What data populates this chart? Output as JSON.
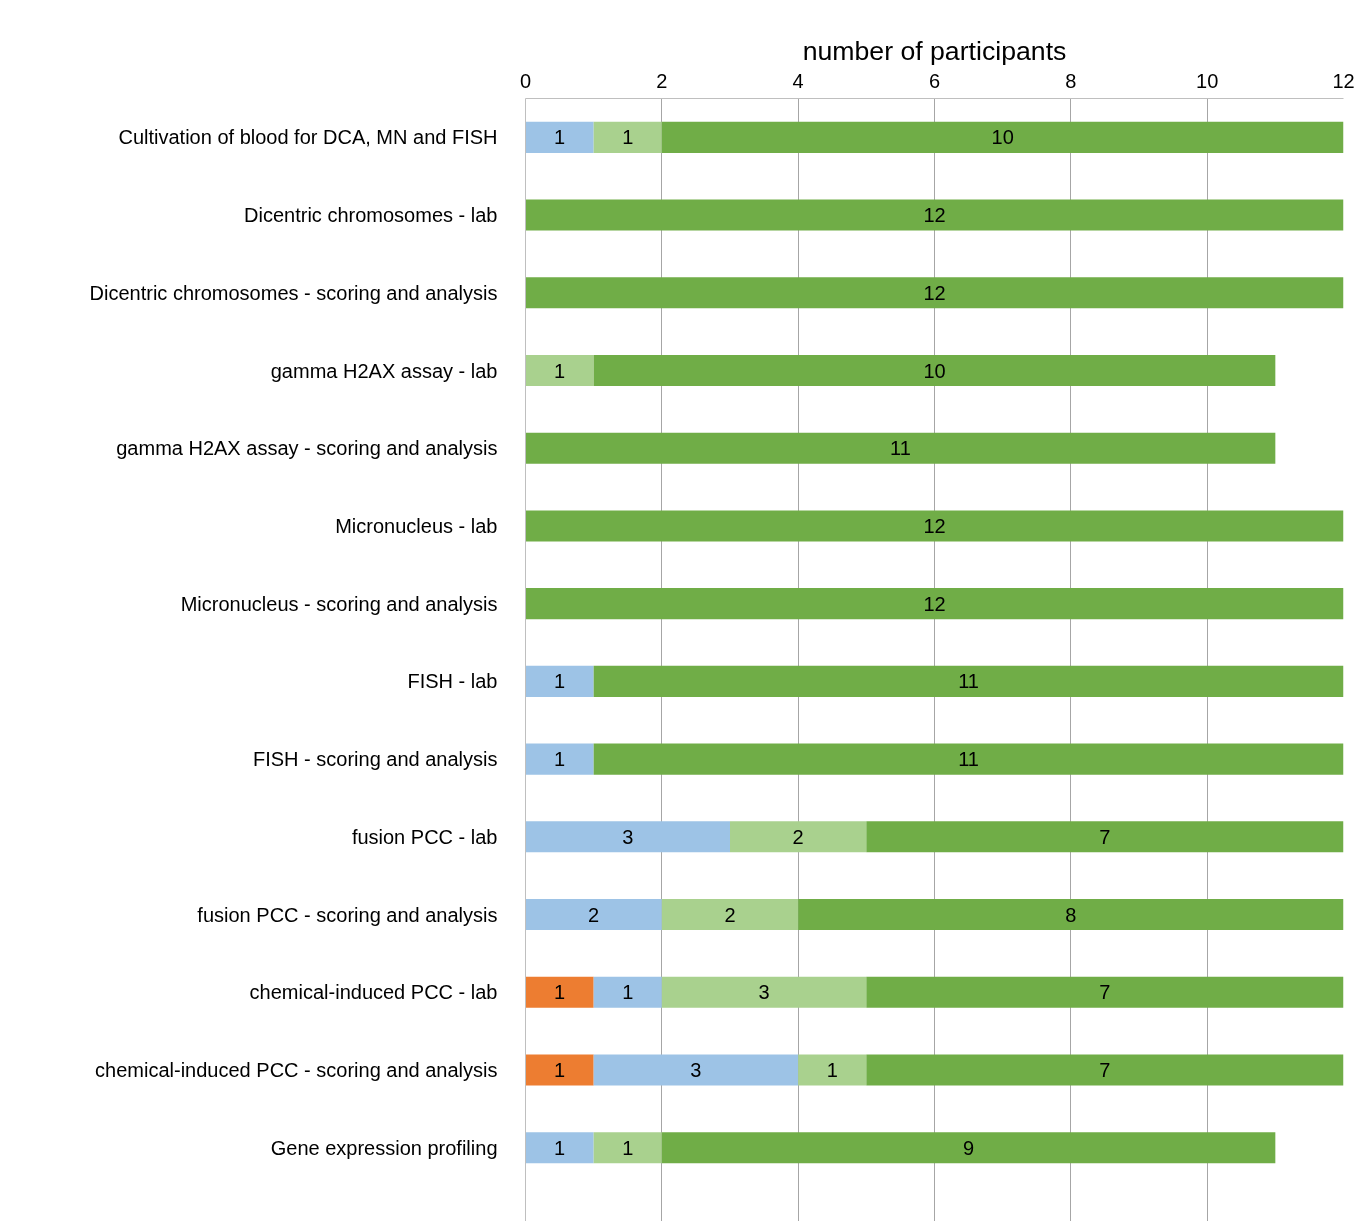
{
  "chart_data": {
    "type": "bar",
    "orientation": "horizontal",
    "stacked": true,
    "data_labels": true,
    "grid": "x",
    "xlabel": "number of participants",
    "xlim": [
      0,
      12
    ],
    "xticks": [
      0,
      2,
      4,
      6,
      8,
      10,
      12
    ],
    "categories": [
      "Cultivation of blood for DCA, MN and FISH",
      "Dicentric chromosomes - lab",
      "Dicentric chromosomes - scoring and analysis",
      "gamma H2AX assay - lab",
      "gamma H2AX assay - scoring and analysis",
      "Micronucleus - lab",
      "Micronucleus - scoring and analysis",
      "FISH - lab",
      "FISH - scoring and analysis",
      "fusion PCC - lab",
      "fusion PCC - scoring and analysis",
      "chemical-induced PCC - lab",
      "chemical-induced PCC - scoring and analysis",
      "Gene expression profiling"
    ],
    "series": [
      {
        "color": "#ed7d31",
        "values": [
          null,
          null,
          null,
          null,
          null,
          null,
          null,
          null,
          null,
          null,
          null,
          1,
          1,
          null
        ]
      },
      {
        "color": "#9dc3e6",
        "values": [
          1,
          null,
          null,
          null,
          null,
          null,
          null,
          1,
          1,
          3,
          2,
          1,
          3,
          1
        ]
      },
      {
        "color": "#a9d18e",
        "values": [
          1,
          null,
          null,
          1,
          null,
          null,
          null,
          null,
          null,
          2,
          2,
          3,
          1,
          1
        ]
      },
      {
        "color": "#70ad47",
        "values": [
          10,
          12,
          12,
          10,
          11,
          12,
          12,
          11,
          11,
          7,
          8,
          7,
          7,
          9
        ]
      }
    ]
  }
}
